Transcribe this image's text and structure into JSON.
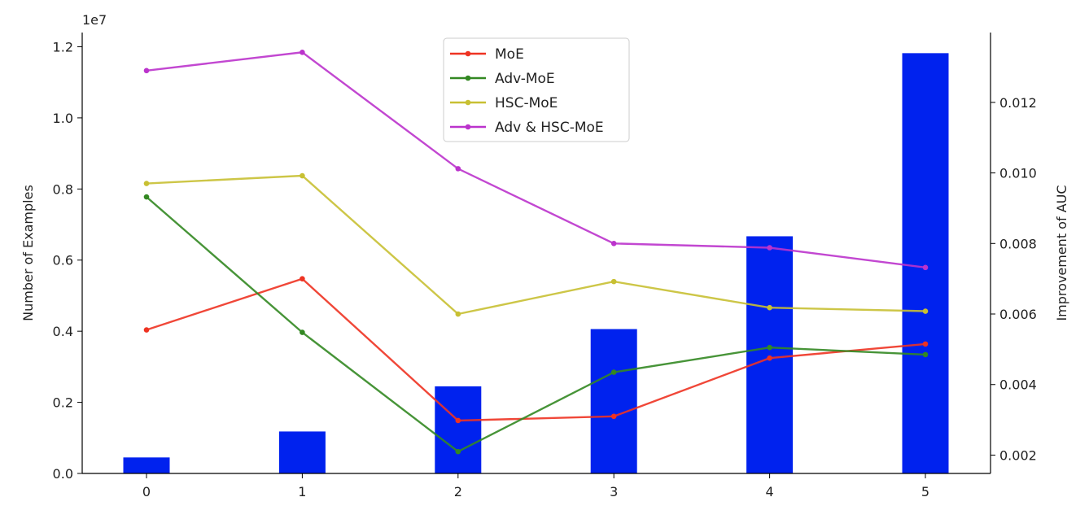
{
  "chart_data": {
    "type": "bar+line",
    "x": [
      0,
      1,
      2,
      3,
      4,
      5
    ],
    "xticks": [
      "0",
      "1",
      "2",
      "3",
      "4",
      "5"
    ],
    "bars": {
      "axis": "left",
      "color": "#0022ee",
      "values": [
        450000,
        1180000,
        2450000,
        4060000,
        6670000,
        11820000
      ]
    },
    "left_axis": {
      "ylabel": "Number of Examples",
      "ylim": [
        0,
        12400000
      ],
      "scale_label": "1e7",
      "ticks": [
        0,
        2000000,
        4000000,
        6000000,
        8000000,
        10000000,
        12000000
      ],
      "tick_labels": [
        "0.0",
        "0.2",
        "0.4",
        "0.6",
        "0.8",
        "1.0",
        "1.2"
      ]
    },
    "right_axis": {
      "ylabel": "Improvement of AUC",
      "ylim": [
        0.00148,
        0.01398
      ],
      "ticks": [
        0.002,
        0.004,
        0.006,
        0.008,
        0.01,
        0.012
      ],
      "tick_labels": [
        "0.002",
        "0.004",
        "0.006",
        "0.008",
        "0.010",
        "0.012"
      ]
    },
    "series": [
      {
        "name": "MoE",
        "color": "#ee3322",
        "axis": "right",
        "values": [
          0.00555,
          0.007,
          0.00298,
          0.0031,
          0.00475,
          0.00515
        ]
      },
      {
        "name": "Adv-MoE",
        "color": "#338822",
        "axis": "right",
        "values": [
          0.00932,
          0.00548,
          0.0021,
          0.00435,
          0.00505,
          0.00485
        ]
      },
      {
        "name": "HSC-MoE",
        "color": "#c8c033",
        "axis": "right",
        "values": [
          0.0097,
          0.00992,
          0.006,
          0.00692,
          0.00618,
          0.00608
        ]
      },
      {
        "name": "Adv & HSC-MoE",
        "color": "#bb33cc",
        "axis": "right",
        "values": [
          0.0129,
          0.01342,
          0.01012,
          0.008,
          0.00788,
          0.00732
        ]
      }
    ],
    "grid": false,
    "legend_position": "top-center"
  }
}
